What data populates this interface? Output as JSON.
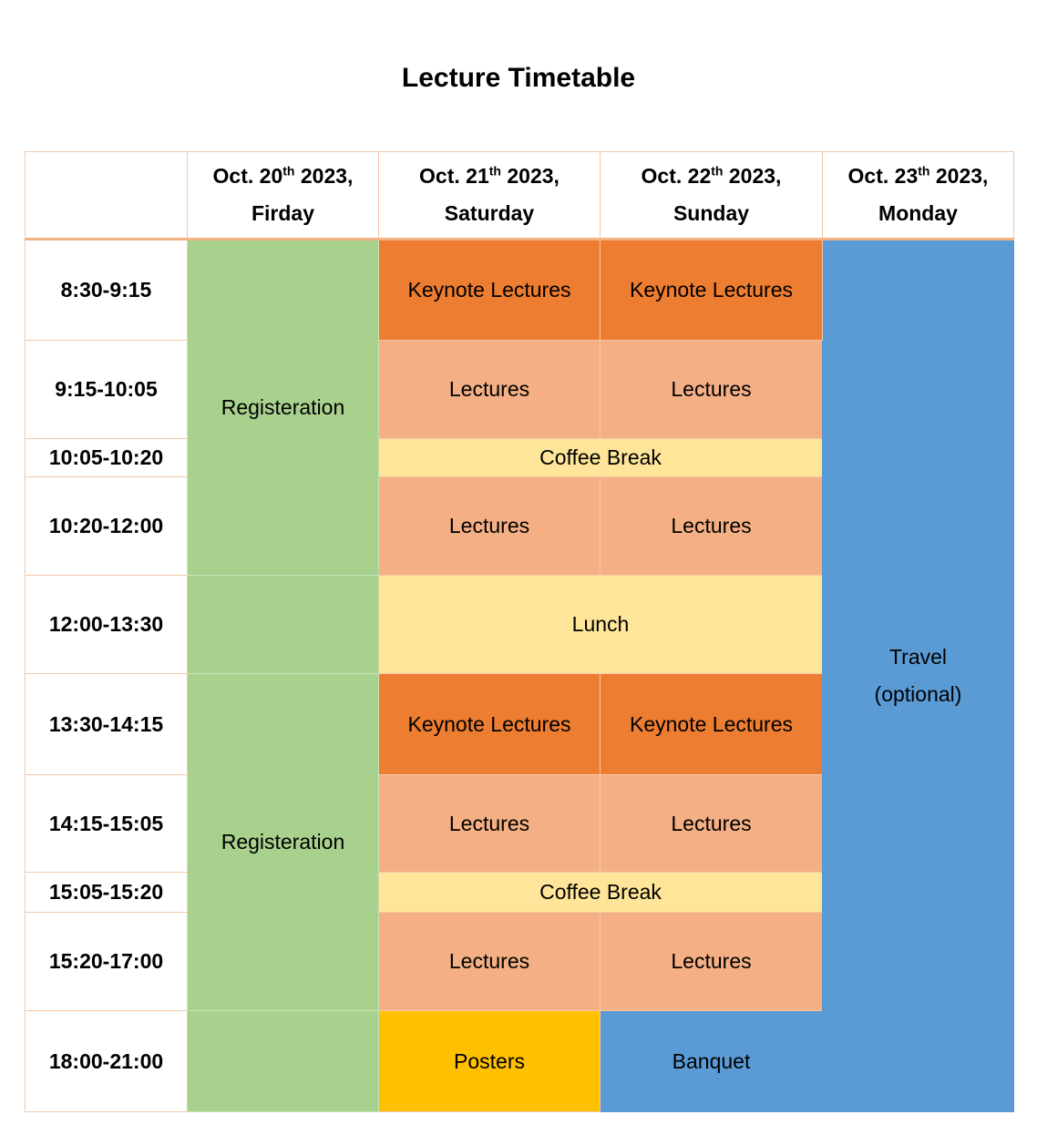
{
  "title": "Lecture Timetable",
  "headers": [
    {
      "month": "Oct. 20",
      "sup": "th",
      "year": " 2023,",
      "weekday": "Firday"
    },
    {
      "month": "Oct. 21",
      "sup": "th",
      "year": " 2023,",
      "weekday": "Saturday"
    },
    {
      "month": "Oct. 22",
      "sup": "th",
      "year": " 2023,",
      "weekday": "Sunday"
    },
    {
      "month": "Oct. 23",
      "sup": "th",
      "year": " 2023,",
      "weekday": "Monday"
    }
  ],
  "times": [
    "8:30-9:15",
    "9:15-10:05",
    "10:05-10:20",
    "10:20-12:00",
    "12:00-13:30",
    "13:30-14:15",
    "14:15-15:05",
    "15:05-15:20",
    "15:20-17:00",
    "18:00-21:00"
  ],
  "sessions": {
    "registration_am": "Registeration",
    "registration_pm": "Registeration",
    "keynote": "Keynote Lectures",
    "lectures": "Lectures",
    "coffee_break": "Coffee Break",
    "lunch": "Lunch",
    "posters": "Posters",
    "banquet": "Banquet",
    "travel_line1": "Travel",
    "travel_line2": "(optional)"
  },
  "colors": {
    "registration": "#a9d18e",
    "keynote": "#ed7d31",
    "lectures": "#f4b084",
    "breaks": "#fee599",
    "posters": "#ffc000",
    "banquet_travel": "#5b9bd5"
  }
}
